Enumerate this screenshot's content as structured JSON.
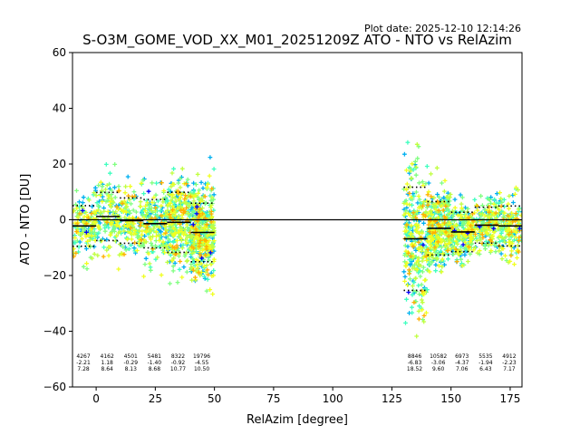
{
  "chart_data": {
    "type": "scatter",
    "title": "S-O3M_GOME_VOD_XX_M01_20251209Z ATO - NTO vs RelAzim",
    "plot_date": "Plot date: 2025-12-10 12:14:26",
    "xlabel": "RelAzim [degree]",
    "ylabel": "ATO - NTO [DU]",
    "xlim": [
      -10,
      180
    ],
    "ylim": [
      -60,
      60
    ],
    "xticks": [
      "0",
      "25",
      "50",
      "75",
      "100",
      "125",
      "150",
      "175"
    ],
    "xtick_values": [
      0,
      25,
      50,
      75,
      100,
      125,
      150,
      175
    ],
    "yticks": [
      "−60",
      "−40",
      "−20",
      "0",
      "20",
      "40",
      "60"
    ],
    "ytick_values": [
      -60,
      -40,
      -20,
      0,
      20,
      40,
      60
    ],
    "grid": false,
    "zero_line": 0,
    "marker": "+",
    "point_colors": [
      "#00b0f0",
      "#40ffc0",
      "#80ff80",
      "#c0ff40",
      "#f0ff20",
      "#ffb000",
      "#0000ff"
    ],
    "bin_stats": [
      {
        "x": -5,
        "count": "4267",
        "mean": "-2.21",
        "std": "7.28",
        "mean_val": -2.21,
        "std_val": 7.28
      },
      {
        "x": 5,
        "count": "4162",
        "mean": "1.18",
        "std": "8.64",
        "mean_val": 1.18,
        "std_val": 8.64
      },
      {
        "x": 15,
        "count": "4501",
        "mean": "-0.29",
        "std": "8.13",
        "mean_val": -0.29,
        "std_val": 8.13
      },
      {
        "x": 25,
        "count": "5481",
        "mean": "-1.40",
        "std": "8.68",
        "mean_val": -1.4,
        "std_val": 8.68
      },
      {
        "x": 35,
        "count": "8322",
        "mean": "-0.92",
        "std": "10.77",
        "mean_val": -0.92,
        "std_val": 10.77
      },
      {
        "x": 45,
        "count": "19796",
        "mean": "-4.55",
        "std": "10.50",
        "mean_val": -4.55,
        "std_val": 10.5
      },
      {
        "x": 135,
        "count": "8846",
        "mean": "-6.83",
        "std": "18.52",
        "mean_val": -6.83,
        "std_val": 18.52
      },
      {
        "x": 145,
        "count": "10582",
        "mean": "-3.06",
        "std": "9.60",
        "mean_val": -3.06,
        "std_val": 9.6
      },
      {
        "x": 155,
        "count": "6973",
        "mean": "-4.37",
        "std": "7.06",
        "mean_val": -4.37,
        "std_val": 7.06
      },
      {
        "x": 165,
        "count": "5535",
        "mean": "-1.94",
        "std": "6.43",
        "mean_val": -1.94,
        "std_val": 6.43
      },
      {
        "x": 175,
        "count": "4912",
        "mean": "-2.23",
        "std": "7.17",
        "mean_val": -2.23,
        "std_val": 7.17
      }
    ]
  }
}
